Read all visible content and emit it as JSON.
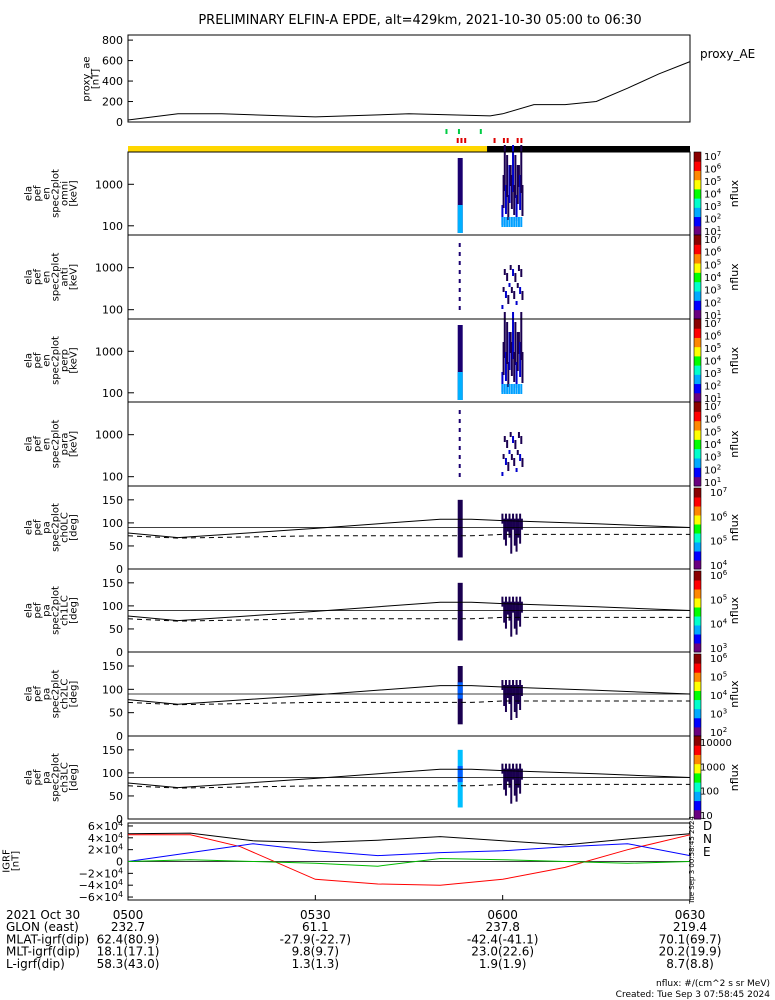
{
  "title": "PRELIMINARY ELFIN-A EPDE, alt=429km, 2021-10-30 05:00 to 06:30",
  "ae_panel": {
    "ylabel_lines": [
      "proxy_ae",
      "[nT]"
    ],
    "ticks": [
      "800",
      "600",
      "400",
      "200",
      "0"
    ],
    "series_label": "proxy_AE"
  },
  "spec_panels": [
    {
      "ylabel_lines": [
        "ela",
        "pef",
        "en",
        "spec2plot",
        "omni",
        "[keV]"
      ],
      "ticks": [
        "1000",
        "100"
      ],
      "cbar_ticks": [
        "10^7",
        "10^6",
        "10^5",
        "10^4",
        "10^3",
        "10^2",
        "10^1"
      ],
      "cbar_label": "nflux"
    },
    {
      "ylabel_lines": [
        "ela",
        "pef",
        "en",
        "spec2plot",
        "anti",
        "[keV]"
      ],
      "ticks": [
        "1000",
        "100"
      ],
      "cbar_ticks": [
        "10^7",
        "10^6",
        "10^5",
        "10^4",
        "10^3",
        "10^2",
        "10^1"
      ],
      "cbar_label": "nflux"
    },
    {
      "ylabel_lines": [
        "ela",
        "pef",
        "en",
        "spec2plot",
        "perp",
        "[keV]"
      ],
      "ticks": [
        "1000",
        "100"
      ],
      "cbar_ticks": [
        "10^7",
        "10^6",
        "10^5",
        "10^4",
        "10^3",
        "10^2",
        "10^1"
      ],
      "cbar_label": "nflux"
    },
    {
      "ylabel_lines": [
        "ela",
        "pef",
        "en",
        "spec2plot",
        "para",
        "[keV]"
      ],
      "ticks": [
        "1000",
        "100"
      ],
      "cbar_ticks": [
        "10^7",
        "10^6",
        "10^5",
        "10^4",
        "10^3",
        "10^2",
        "10^1"
      ],
      "cbar_label": "nflux"
    }
  ],
  "pa_panels": [
    {
      "ylabel_lines": [
        "ela",
        "pef",
        "pa",
        "spec2plot",
        "ch0LC",
        "[deg]"
      ],
      "ticks": [
        "150",
        "100",
        "50",
        "0"
      ],
      "cbar_ticks": [
        "10^7",
        "10^6",
        "10^5",
        "10^4"
      ],
      "cbar_label": "nflux"
    },
    {
      "ylabel_lines": [
        "ela",
        "pef",
        "pa",
        "spec2plot",
        "ch1LC",
        "[deg]"
      ],
      "ticks": [
        "150",
        "100",
        "50",
        "0"
      ],
      "cbar_ticks": [
        "10^6",
        "10^5",
        "10^4",
        "10^3"
      ],
      "cbar_label": "nflux"
    },
    {
      "ylabel_lines": [
        "ela",
        "pef",
        "pa",
        "spec2plot",
        "ch2LC",
        "[deg]"
      ],
      "ticks": [
        "150",
        "100",
        "50",
        "0"
      ],
      "cbar_ticks": [
        "10^6",
        "10^5",
        "10^4",
        "10^3",
        "10^2"
      ],
      "cbar_label": "nflux"
    },
    {
      "ylabel_lines": [
        "ela",
        "pef",
        "pa",
        "spec2plot",
        "ch3LC",
        "[deg]"
      ],
      "ticks": [
        "150",
        "100",
        "50",
        "0"
      ],
      "cbar_ticks": [
        "10000",
        "1000",
        "100",
        "10"
      ],
      "cbar_label": "nflux"
    }
  ],
  "igrf_panel": {
    "ylabel_lines": [
      "IGRF",
      "[nT]"
    ],
    "ticks": [
      "6×10^4",
      "4×10^4",
      "2×10^4",
      "0",
      "−2×10^4",
      "−4×10^4",
      "−6×10^4"
    ],
    "legend": [
      {
        "label": "D",
        "color": "#ff0000"
      },
      {
        "label": "N",
        "color": "#0000ff"
      },
      {
        "label": "E",
        "color": "#00bb00"
      }
    ],
    "side_note": "Tue Sep  3 00:58:45 2024"
  },
  "axis": {
    "rows": [
      {
        "label": "2021 Oct 30",
        "values": [
          "0500",
          "0530",
          "0600",
          "0630"
        ]
      },
      {
        "label": "GLON (east)",
        "values": [
          "232.7",
          "61.1",
          "237.8",
          "219.4"
        ]
      },
      {
        "label": "MLAT-igrf(dip)",
        "values": [
          "62.4(80.9)",
          "-27.9(-22.7)",
          "-42.4(-41.1)",
          "70.1(69.7)"
        ]
      },
      {
        "label": "MLT-igrf(dip)",
        "values": [
          "18.1(17.1)",
          "9.8(9.7)",
          "23.0(22.6)",
          "20.2(19.9)"
        ]
      },
      {
        "label": "L-igrf(dip)",
        "values": [
          "58.3(43.0)",
          "1.3(1.3)",
          "1.9(1.9)",
          "8.7(8.8)"
        ]
      }
    ]
  },
  "footer": {
    "units": "nflux: #/(cm^2 s sr MeV)",
    "created": "Created: Tue Sep  3 07:58:45 2024"
  },
  "chart_data": {
    "type": "line",
    "title": "PRELIMINARY ELFIN-A EPDE, alt=429km, 2021-10-30 05:00 to 06:30",
    "x_range_utc": [
      "05:00",
      "06:30"
    ],
    "colors": {
      "status_bar_day": "#ffd700",
      "status_bar_night": "#000000",
      "igrf_D": "#ff0000",
      "igrf_N": "#0000ff",
      "igrf_E": "#00bb00"
    },
    "proxy_ae": {
      "ylabel": "proxy_ae [nT]",
      "ylim": [
        0,
        850
      ],
      "x_min": [
        0,
        8,
        15,
        30,
        45,
        58,
        60,
        65,
        70,
        75,
        80,
        85,
        90
      ],
      "values": [
        20,
        80,
        80,
        50,
        80,
        60,
        80,
        170,
        170,
        200,
        330,
        470,
        590
      ]
    },
    "status_bar": {
      "yellow_until_min": 57.5,
      "black_from_min": 57.5
    },
    "tick_marks": {
      "green_min": [
        51,
        53,
        56.5
      ],
      "red_min": [
        52.8,
        53.4,
        54,
        58.7,
        60.2,
        60.8,
        62.4,
        63
      ]
    },
    "energy_spectrograms": {
      "ylim_keV": [
        60,
        6000
      ],
      "scale": "log",
      "active_intervals_min": [
        [
          52.8,
          53.6
        ],
        [
          59.8,
          63.2
        ]
      ]
    },
    "pitch_angle": {
      "ylim_deg": [
        0,
        180
      ],
      "solid_line_deg": {
        "x_min": [
          0,
          8,
          30,
          50,
          55,
          60,
          75,
          90
        ],
        "values": [
          78,
          68,
          88,
          108,
          108,
          105,
          98,
          90
        ]
      },
      "dashed_line_deg": {
        "x_min": [
          0,
          8,
          30,
          50,
          55,
          60,
          75,
          90
        ],
        "values": [
          72,
          67,
          72,
          72,
          72,
          75,
          75,
          75
        ]
      },
      "horizontal_line_deg": 90
    },
    "igrf": {
      "ylabel": "IGRF [nT]",
      "ylim": [
        -65000,
        65000
      ],
      "series": [
        {
          "name": "D",
          "x_min": [
            0,
            10,
            18,
            30,
            40,
            50,
            60,
            70,
            80,
            90
          ],
          "values": [
            45000,
            45000,
            25000,
            -30000,
            -38000,
            -40000,
            -30000,
            -10000,
            20000,
            45000
          ]
        },
        {
          "name": "N",
          "x_min": [
            0,
            10,
            20,
            30,
            40,
            50,
            60,
            70,
            80,
            90
          ],
          "values": [
            0,
            15000,
            30000,
            18000,
            10000,
            15000,
            18000,
            25000,
            30000,
            10000
          ]
        },
        {
          "name": "E",
          "x_min": [
            0,
            10,
            20,
            30,
            40,
            50,
            60,
            70,
            80,
            90
          ],
          "values": [
            0,
            3000,
            0,
            -3000,
            -8000,
            5000,
            3000,
            0,
            -3000,
            0
          ]
        }
      ],
      "total": {
        "x_min": [
          0,
          10,
          20,
          30,
          40,
          50,
          60,
          70,
          80,
          90
        ],
        "values": [
          47000,
          48000,
          35000,
          32000,
          36000,
          42000,
          35000,
          28000,
          38000,
          47000
        ]
      }
    }
  }
}
